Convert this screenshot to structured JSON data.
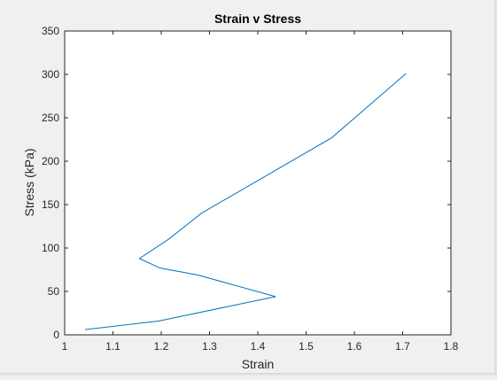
{
  "colors": {
    "figure_background": "#f0f0f0",
    "axes_background": "#ffffff",
    "axis_color": "#262626",
    "series_color": "#0072bd"
  },
  "chart_data": {
    "type": "line",
    "title": "Strain v Stress",
    "xlabel": "Strain",
    "ylabel": "Stress (kPa)",
    "xlim": [
      1,
      1.8
    ],
    "ylim": [
      0,
      350
    ],
    "xticks": [
      "1",
      "1.1",
      "1.2",
      "1.3",
      "1.4",
      "1.5",
      "1.6",
      "1.7",
      "1.8"
    ],
    "yticks": [
      "0",
      "50",
      "100",
      "150",
      "200",
      "250",
      "300",
      "350"
    ],
    "grid": false,
    "legend": false,
    "series": [
      {
        "color": "#0072bd",
        "x": [
          1.042,
          1.195,
          1.437,
          1.275,
          1.197,
          1.155,
          1.215,
          1.283,
          1.553,
          1.707
        ],
        "y": [
          6,
          16,
          44,
          69,
          77,
          88,
          110,
          140,
          227,
          301
        ]
      }
    ]
  }
}
